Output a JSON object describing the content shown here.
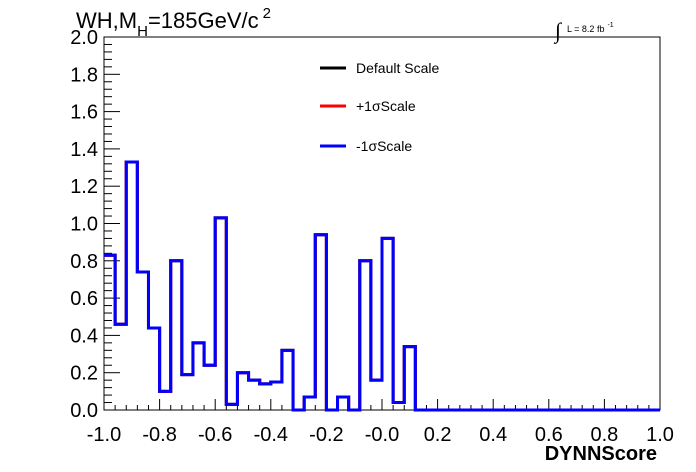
{
  "chart_data": {
    "type": "line",
    "title": {
      "main": "WH,M",
      "sub": "H",
      "rest": "=185GeV/c",
      "sup": "2"
    },
    "lumi": {
      "integral": "∫",
      "text": "L = 8.2 fb",
      "sup": "-1"
    },
    "xlabel": "DYNNScore",
    "ylabel": "",
    "xlim": [
      -1.0,
      1.0
    ],
    "ylim": [
      0.0,
      2.0
    ],
    "xticks": [
      "-1.0",
      "-0.8",
      "-0.6",
      "-0.4",
      "-0.2",
      "-0.0",
      "0.2",
      "0.4",
      "0.6",
      "0.8",
      "1.0"
    ],
    "yticks": [
      "0.0",
      "0.2",
      "0.4",
      "0.6",
      "0.8",
      "1.0",
      "1.2",
      "1.4",
      "1.6",
      "1.8",
      "2.0"
    ],
    "grid": false,
    "legend": {
      "placement": "top-center",
      "entries": [
        {
          "label": "Default Scale",
          "color": "#000000"
        },
        {
          "label": "+1σScale",
          "color": "#ff0000"
        },
        {
          "label": "-1σScale",
          "color": "#0000ff"
        }
      ]
    },
    "bin_edges": [
      -1.0,
      -0.96,
      -0.92,
      -0.88,
      -0.84,
      -0.8,
      -0.76,
      -0.72,
      -0.68,
      -0.64,
      -0.6,
      -0.56,
      -0.52,
      -0.48,
      -0.44,
      -0.4,
      -0.36,
      -0.32,
      -0.28,
      -0.24,
      -0.2,
      -0.16,
      -0.12,
      -0.08,
      -0.04,
      0.0,
      0.04,
      0.08,
      0.12,
      0.16,
      0.2,
      0.24,
      0.28,
      0.32,
      0.36,
      0.4,
      0.44,
      0.48,
      0.52,
      0.56,
      0.6,
      0.64,
      0.68,
      0.72,
      0.76,
      0.8,
      0.84,
      0.88,
      0.92,
      0.96,
      1.0
    ],
    "series": [
      {
        "name": "Default Scale",
        "color": "#000000",
        "values": [
          0.83,
          0.46,
          1.33,
          0.74,
          0.44,
          0.1,
          0.8,
          0.19,
          0.36,
          0.24,
          1.03,
          0.03,
          0.2,
          0.16,
          0.14,
          0.15,
          0.32,
          0.0,
          0.07,
          0.94,
          0.0,
          0.07,
          0.0,
          0.8,
          0.16,
          0.92,
          0.04,
          0.34,
          0.0,
          0.0,
          0.0,
          0.0,
          0.0,
          0.0,
          0.0,
          0.0,
          0.0,
          0.0,
          0.0,
          0.0,
          0.0,
          0.0,
          0.0,
          0.0,
          0.0,
          0.0,
          0.0,
          0.0,
          0.0,
          0.0
        ]
      },
      {
        "name": "+1σScale",
        "color": "#ff0000",
        "values": [
          0.83,
          0.46,
          1.33,
          0.74,
          0.44,
          0.1,
          0.8,
          0.19,
          0.36,
          0.24,
          1.03,
          0.03,
          0.2,
          0.16,
          0.14,
          0.15,
          0.32,
          0.0,
          0.07,
          0.94,
          0.0,
          0.07,
          0.0,
          0.8,
          0.16,
          0.92,
          0.04,
          0.34,
          0.0,
          0.0,
          0.0,
          0.0,
          0.0,
          0.0,
          0.0,
          0.0,
          0.0,
          0.0,
          0.0,
          0.0,
          0.0,
          0.0,
          0.0,
          0.0,
          0.0,
          0.0,
          0.0,
          0.0,
          0.0,
          0.0
        ]
      },
      {
        "name": "-1σScale",
        "color": "#0000ff",
        "values": [
          0.83,
          0.46,
          1.33,
          0.74,
          0.44,
          0.1,
          0.8,
          0.19,
          0.36,
          0.24,
          1.03,
          0.03,
          0.2,
          0.16,
          0.14,
          0.15,
          0.32,
          0.0,
          0.07,
          0.94,
          0.0,
          0.07,
          0.0,
          0.8,
          0.16,
          0.92,
          0.04,
          0.34,
          0.0,
          0.0,
          0.0,
          0.0,
          0.0,
          0.0,
          0.0,
          0.0,
          0.0,
          0.0,
          0.0,
          0.0,
          0.0,
          0.0,
          0.0,
          0.0,
          0.0,
          0.0,
          0.0,
          0.0,
          0.0,
          0.0
        ]
      }
    ]
  }
}
